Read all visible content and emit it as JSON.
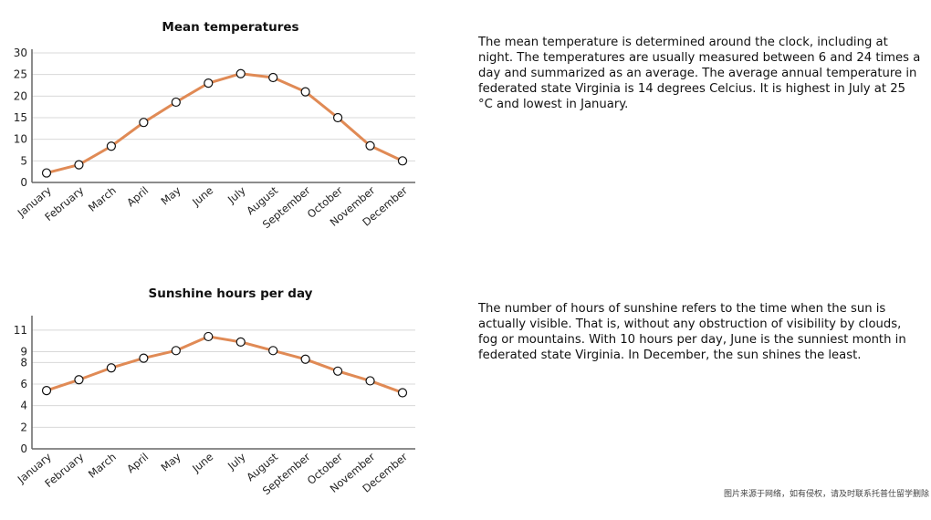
{
  "chart_data": [
    {
      "type": "line",
      "title": "Mean temperatures",
      "categories": [
        "January",
        "February",
        "March",
        "April",
        "May",
        "June",
        "July",
        "August",
        "September",
        "October",
        "November",
        "December"
      ],
      "series": [
        {
          "values": [
            2.2,
            4.1,
            8.4,
            13.9,
            18.6,
            23.0,
            25.2,
            24.3,
            21.0,
            15.0,
            8.5,
            5.0
          ]
        }
      ],
      "yticks": [
        0,
        5,
        10,
        15,
        20,
        25,
        30
      ],
      "ylim": [
        0,
        30
      ],
      "grid": true,
      "line_color": "#e08a55"
    },
    {
      "type": "line",
      "title": "Sunshine hours per day",
      "categories": [
        "January",
        "February",
        "March",
        "April",
        "May",
        "June",
        "July",
        "August",
        "September",
        "October",
        "November",
        "December"
      ],
      "series": [
        {
          "values": [
            5.4,
            6.4,
            7.5,
            8.4,
            9.1,
            10.4,
            9.9,
            9.1,
            8.3,
            7.2,
            6.3,
            5.2
          ]
        }
      ],
      "yticks": [
        0,
        2,
        4,
        6,
        8,
        9,
        11
      ],
      "ylim": [
        0,
        12
      ],
      "grid": true,
      "line_color": "#e08a55"
    }
  ],
  "descriptions": {
    "temperature": "The mean temperature is determined around the clock, including at night. The temperatures are usually measured between 6 and 24 times a day and summarized as an average. The average annual temperature in federated state Virginia is 14 degrees Celcius. It is highest in July at 25 °C and lowest in January.",
    "sunshine": "The number of hours of sunshine refers to the time when the sun is actually visible. That is, without any obstruction of visibility by clouds, fog or mountains. With 10 hours per day, June is the sunniest month in federated state Virginia. In December, the sun shines the least."
  },
  "watermark": "图片来源于网络，如有侵权，请及时联系托普仕留学删除"
}
